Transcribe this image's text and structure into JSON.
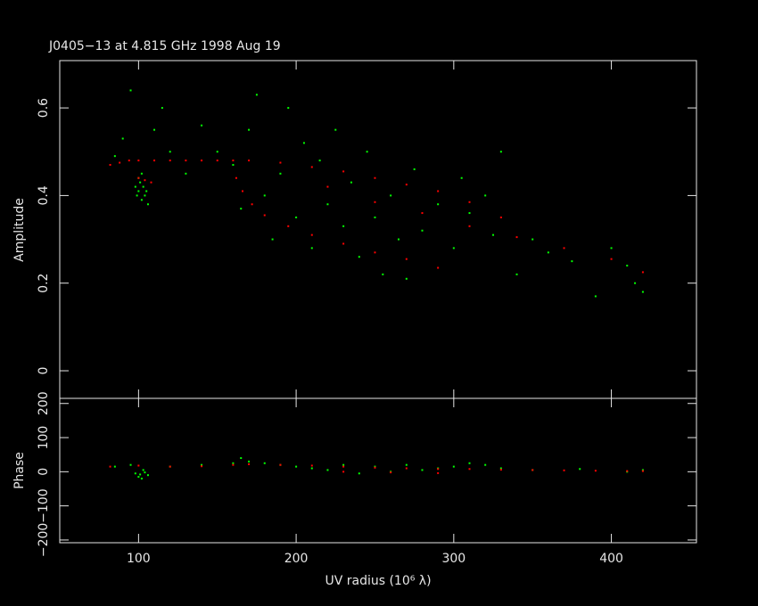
{
  "chart_data": [
    {
      "type": "scatter",
      "title": "J0405−13 at 4.815 GHz 1998 Aug 19",
      "ylabel": "Amplitude",
      "xlim": [
        50,
        454
      ],
      "ylim": [
        -0.063,
        0.708
      ],
      "yticks": [
        0,
        0.2,
        0.4,
        0.6
      ],
      "series": [
        {
          "color": "#00ff00",
          "x": [
            85,
            90,
            95,
            98,
            99,
            100,
            101,
            102,
            103,
            104,
            105,
            106,
            100,
            102,
            110,
            115,
            120,
            130,
            140,
            150,
            160,
            165,
            170,
            175,
            180,
            185,
            190,
            195,
            200,
            205,
            210,
            215,
            220,
            225,
            230,
            235,
            240,
            245,
            250,
            255,
            260,
            265,
            270,
            275,
            280,
            290,
            300,
            305,
            310,
            320,
            325,
            330,
            340,
            350,
            360,
            375,
            390,
            400,
            410,
            415,
            420
          ],
          "values": [
            0.49,
            0.53,
            0.64,
            0.42,
            0.4,
            0.41,
            0.43,
            0.39,
            0.42,
            0.4,
            0.41,
            0.38,
            0.44,
            0.45,
            0.55,
            0.6,
            0.5,
            0.45,
            0.56,
            0.5,
            0.47,
            0.37,
            0.55,
            0.63,
            0.4,
            0.3,
            0.45,
            0.6,
            0.35,
            0.52,
            0.28,
            0.48,
            0.38,
            0.55,
            0.33,
            0.43,
            0.26,
            0.5,
            0.35,
            0.22,
            0.4,
            0.3,
            0.21,
            0.46,
            0.32,
            0.38,
            0.28,
            0.44,
            0.36,
            0.4,
            0.31,
            0.5,
            0.22,
            0.3,
            0.27,
            0.25,
            0.17,
            0.28,
            0.24,
            0.2,
            0.18
          ]
        },
        {
          "color": "#ff0000",
          "x": [
            82,
            88,
            94,
            100,
            110,
            120,
            130,
            140,
            150,
            160,
            100,
            104,
            108,
            170,
            190,
            210,
            230,
            250,
            270,
            290,
            310,
            330,
            162,
            166,
            172,
            180,
            195,
            210,
            230,
            250,
            270,
            290,
            220,
            250,
            280,
            310,
            340,
            370,
            400,
            420
          ],
          "values": [
            0.47,
            0.475,
            0.48,
            0.48,
            0.48,
            0.48,
            0.48,
            0.48,
            0.48,
            0.48,
            0.44,
            0.435,
            0.43,
            0.48,
            0.475,
            0.465,
            0.455,
            0.44,
            0.425,
            0.41,
            0.385,
            0.35,
            0.44,
            0.41,
            0.38,
            0.355,
            0.33,
            0.31,
            0.29,
            0.27,
            0.255,
            0.235,
            0.42,
            0.385,
            0.36,
            0.33,
            0.305,
            0.28,
            0.255,
            0.225
          ]
        }
      ]
    },
    {
      "type": "scatter",
      "ylabel": "Phase",
      "xlabel": "UV radius  (10⁶ λ)",
      "xlim": [
        50,
        454
      ],
      "xticks": [
        100,
        200,
        300,
        400
      ],
      "ylim": [
        -208,
        215
      ],
      "yticks": [
        {
          "value": -200,
          "label": "−200"
        },
        {
          "value": -100,
          "label": "−100"
        },
        0,
        100,
        200
      ],
      "series": [
        {
          "color": "#00ff00",
          "x": [
            85,
            95,
            98,
            100,
            101,
            102,
            104,
            106,
            103,
            120,
            140,
            160,
            165,
            170,
            180,
            190,
            200,
            210,
            220,
            230,
            240,
            250,
            260,
            270,
            280,
            290,
            300,
            310,
            320,
            330,
            350,
            380,
            410,
            420
          ],
          "values": [
            15,
            20,
            -5,
            -15,
            -8,
            -20,
            -2,
            -10,
            5,
            15,
            20,
            25,
            40,
            30,
            25,
            20,
            15,
            10,
            5,
            20,
            -5,
            15,
            0,
            20,
            5,
            10,
            15,
            25,
            20,
            10,
            5,
            8,
            0,
            5
          ]
        },
        {
          "color": "#ff0000",
          "x": [
            82,
            100,
            120,
            140,
            160,
            170,
            190,
            210,
            230,
            250,
            270,
            290,
            310,
            330,
            350,
            370,
            390,
            410,
            420,
            230,
            260,
            290
          ],
          "values": [
            15,
            18,
            15,
            16,
            20,
            22,
            20,
            18,
            15,
            12,
            10,
            8,
            8,
            6,
            5,
            4,
            3,
            2,
            2,
            0,
            -2,
            -4
          ]
        }
      ]
    }
  ]
}
